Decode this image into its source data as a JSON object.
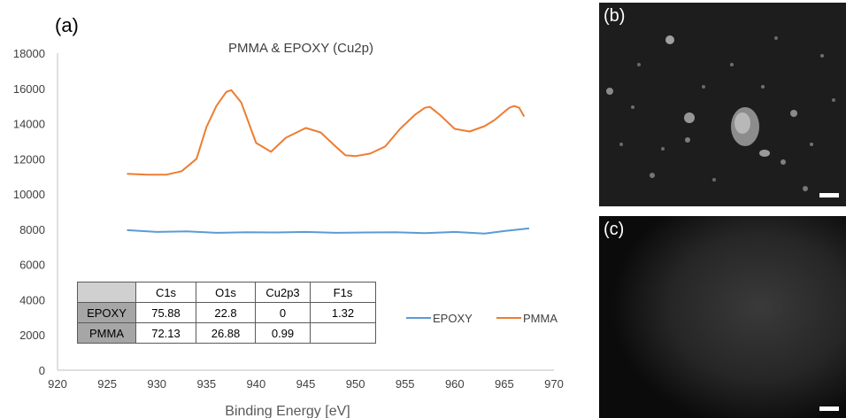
{
  "chart_data": {
    "type": "line",
    "panel_label": "(a)",
    "title": "PMMA & EPOXY (Cu2p)",
    "xlabel": "Binding Energy [eV]",
    "ylabel": "",
    "xlim": [
      920,
      970
    ],
    "ylim": [
      0,
      18000
    ],
    "x_ticks": [
      920,
      925,
      930,
      935,
      940,
      945,
      950,
      955,
      960,
      965,
      970
    ],
    "y_ticks": [
      0,
      2000,
      4000,
      6000,
      8000,
      10000,
      12000,
      14000,
      16000,
      18000
    ],
    "grid": false,
    "legend_position": "right",
    "series": [
      {
        "name": "EPOXY",
        "color": "#5b9bd5",
        "x": [
          927,
          930,
          933,
          936,
          939,
          942,
          945,
          948,
          951,
          954,
          957,
          960,
          963,
          965,
          967.5
        ],
        "y": [
          7950,
          7850,
          7880,
          7800,
          7830,
          7820,
          7850,
          7800,
          7820,
          7830,
          7780,
          7850,
          7760,
          7900,
          8050
        ]
      },
      {
        "name": "PMMA",
        "color": "#ed7d31",
        "x": [
          927,
          929,
          931,
          932.5,
          934,
          935,
          936,
          937,
          937.5,
          938.5,
          940,
          941.5,
          943,
          945,
          946.5,
          948,
          949,
          950,
          951.5,
          953,
          954.5,
          956,
          957,
          957.5,
          958.5,
          960,
          961.5,
          963,
          964,
          965.5,
          966,
          966.5,
          967
        ],
        "y": [
          11150,
          11100,
          11100,
          11300,
          12000,
          13800,
          15000,
          15800,
          15900,
          15200,
          12900,
          12400,
          13200,
          13750,
          13500,
          12700,
          12200,
          12150,
          12300,
          12700,
          13700,
          14500,
          14900,
          14950,
          14500,
          13700,
          13550,
          13850,
          14200,
          14900,
          15000,
          14900,
          14400
        ]
      }
    ],
    "table": {
      "columns": [
        "",
        "C1s",
        "O1s",
        "Cu2p3",
        "F1s"
      ],
      "rows": [
        [
          "EPOXY",
          "75.88",
          "22.8",
          "0",
          "1.32"
        ],
        [
          "PMMA",
          "72.13",
          "26.88",
          "0.99",
          ""
        ]
      ]
    }
  },
  "images": {
    "b": {
      "label": "(b)"
    },
    "c": {
      "label": "(c)"
    }
  }
}
